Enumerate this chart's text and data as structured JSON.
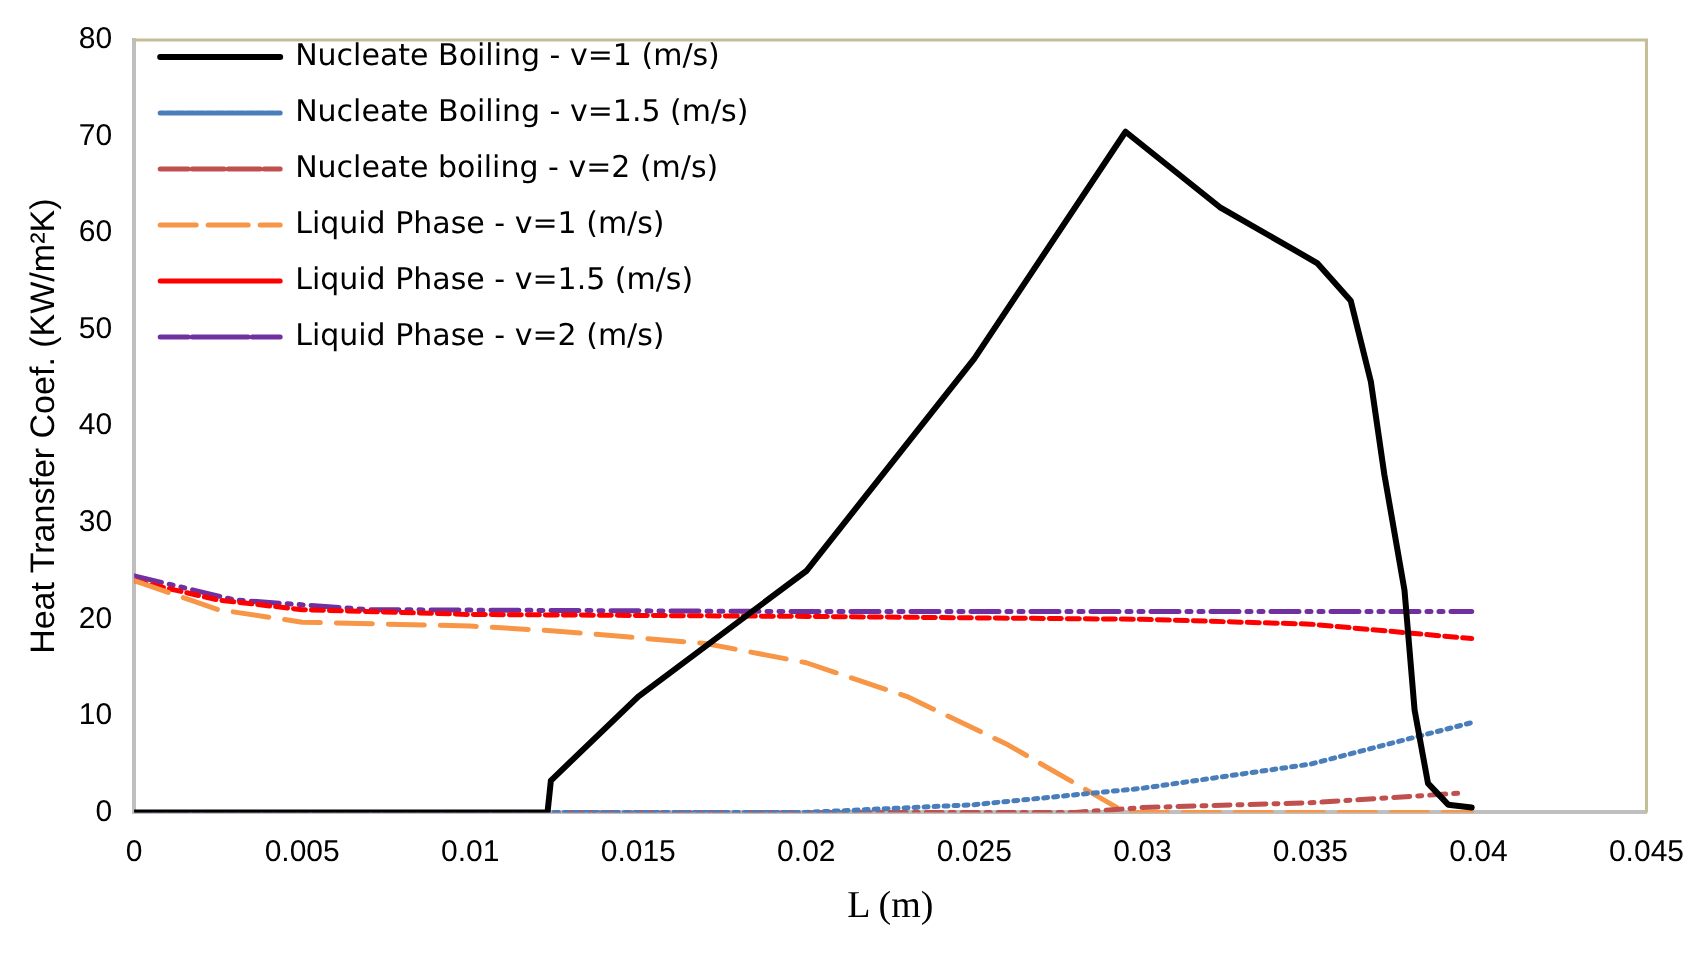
{
  "chart_data": {
    "type": "line",
    "xlabel": "L (m)",
    "ylabel": "Heat Transfer Coef. (KW/m²K)",
    "xlim": [
      0,
      0.045
    ],
    "xticks": [
      0,
      0.005,
      0.01,
      0.015,
      0.02,
      0.025,
      0.03,
      0.035,
      0.04,
      0.045
    ],
    "ylim": [
      0,
      80
    ],
    "yticks": [
      0,
      10,
      20,
      30,
      40,
      50,
      60,
      70,
      80
    ],
    "grid": false,
    "legend": "top left",
    "marker": "none",
    "series": [
      {
        "name": "Nucleate Boiling - v=1 (m/s)",
        "color": "#000000",
        "line_style": "solid",
        "x": [
          0,
          0.005,
          0.0123,
          0.0124,
          0.015,
          0.02,
          0.025,
          0.0295,
          0.0323,
          0.0352,
          0.0362,
          0.0368,
          0.0372,
          0.0378,
          0.0381,
          0.0385,
          0.0391,
          0.0398
        ],
        "values": [
          0,
          0,
          0,
          3.3,
          12,
          25,
          47,
          70.5,
          62.7,
          56.9,
          53,
          44.6,
          35,
          23,
          10.6,
          3,
          0.8,
          0.5
        ]
      },
      {
        "name": "Nucleate Boiling - v=1.5 (m/s)",
        "color": "#4a7ebb",
        "line_style": "dotted",
        "x": [
          0,
          0.01,
          0.02,
          0.025,
          0.03,
          0.035,
          0.0398
        ],
        "values": [
          0,
          0,
          0,
          0.8,
          2.5,
          5,
          9.3
        ]
      },
      {
        "name": "Nucleate boiling - v=2 (m/s)",
        "color": "#c0504d",
        "line_style": "dashed",
        "x": [
          0,
          0.01,
          0.02,
          0.028,
          0.03,
          0.035,
          0.0395
        ],
        "values": [
          0,
          0,
          0,
          0,
          0.5,
          1,
          2
        ]
      },
      {
        "name": "Liquid Phase - v=1 (m/s)",
        "color": "#f79646",
        "line_style": "dashed",
        "x": [
          0,
          0.0025,
          0.005,
          0.01,
          0.0125,
          0.017,
          0.02,
          0.023,
          0.026,
          0.028,
          0.0295,
          0.035,
          0.0398
        ],
        "values": [
          24,
          21,
          19.7,
          19.3,
          18.8,
          17.5,
          15.5,
          12,
          7,
          3,
          0,
          0,
          0
        ]
      },
      {
        "name": "Liquid Phase - v=1.5 (m/s)",
        "color": "#ff0000",
        "line_style": "dashed",
        "x": [
          0,
          0.0025,
          0.005,
          0.01,
          0.02,
          0.03,
          0.035,
          0.0398
        ],
        "values": [
          24,
          22,
          21,
          20.5,
          20.3,
          20,
          19.5,
          18
        ]
      },
      {
        "name": "Liquid Phase - v=2 (m/s)",
        "color": "#7030a0",
        "line_style": "dashed",
        "x": [
          0,
          0.003,
          0.007,
          0.02,
          0.0398
        ],
        "values": [
          24.5,
          22,
          21,
          20.8,
          20.8
        ]
      }
    ]
  }
}
